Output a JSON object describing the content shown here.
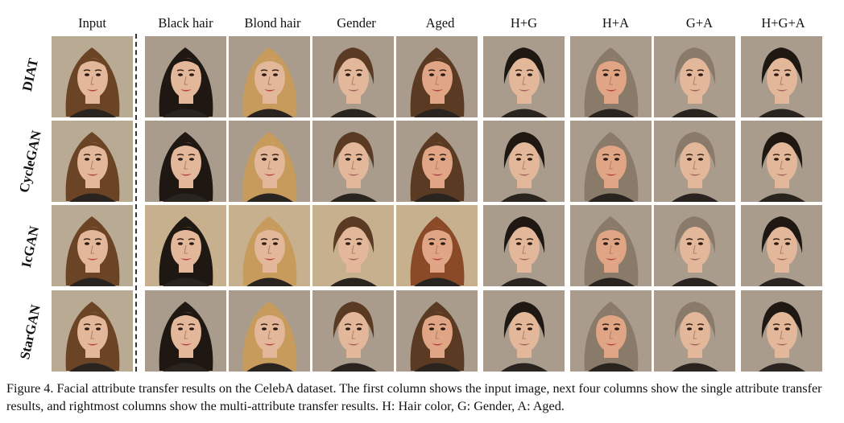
{
  "columns": [
    "Input",
    "Black hair",
    "Blond hair",
    "Gender",
    "Aged",
    "H+G",
    "H+A",
    "G+A",
    "H+G+A"
  ],
  "rows": [
    "DIAT",
    "CycleGAN",
    "IcGAN",
    "StarGAN"
  ],
  "caption": "Figure 4. Facial attribute transfer results on the CelebA dataset. The first column shows the input image, next four columns show the single attribute transfer results, and rightmost columns show the multi-attribute transfer results. H: Hair color, G: Gender, A: Aged.",
  "palette": {
    "hair_input": "#6b4426",
    "hair_black": "#1f1712",
    "hair_blond": "#c79b5c",
    "hair_brown": "#5a3a22",
    "hair_red": "#8a4a28",
    "hair_gray": "#8a7a6a",
    "skin": "#e3b79a",
    "skin_warm": "#dfa585",
    "bg_input": "#b9aa94",
    "bg_tile": "#a99c8c",
    "bg_icgan": "#c7b08e",
    "lips": "#b3403f",
    "shirt": "#2a2420"
  }
}
